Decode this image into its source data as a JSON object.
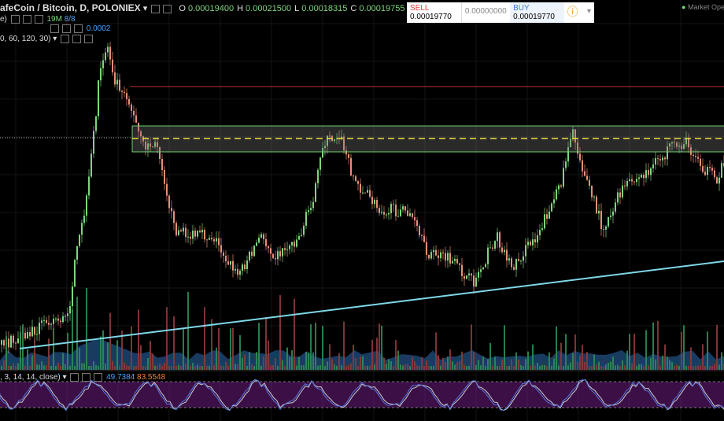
{
  "header": {
    "symbol": "afeCoin / Bitcoin, D, POLONIEX",
    "ohlc": [
      {
        "key": "O",
        "value": "0.00019400"
      },
      {
        "key": "H",
        "value": "0.00021500"
      },
      {
        "key": "L",
        "value": "0.00018315"
      },
      {
        "key": "C",
        "value": "0.00019755"
      }
    ]
  },
  "indicators": [
    {
      "label": "e)",
      "values": [
        "19M",
        "8/8"
      ]
    },
    {
      "label": "0.0002",
      "values": []
    },
    {
      "label": "0, 60, 120, 30)",
      "values": []
    }
  ],
  "trade": {
    "sell_label": "SELL",
    "sell_price": "0.00019770",
    "spread": "0.00000000",
    "buy_label": "BUY",
    "buy_price": "0.00019770"
  },
  "market_status": "Market Open",
  "stoch": {
    "label": ", 3, 14, 14, close)",
    "k": "49.7384",
    "d": "83.5548"
  }
}
